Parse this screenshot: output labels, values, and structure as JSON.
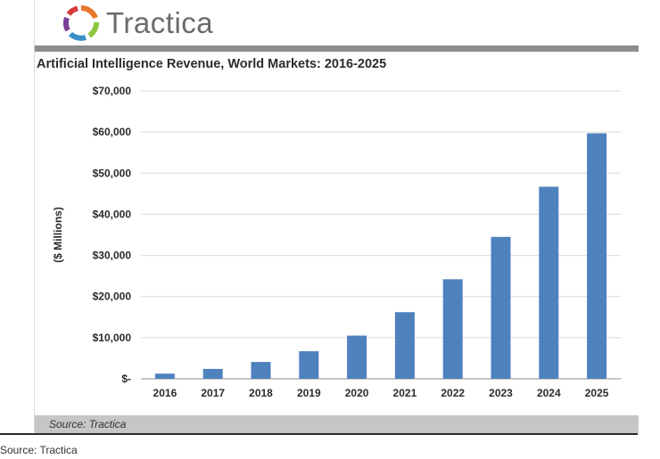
{
  "brand": {
    "name": "Tractica"
  },
  "chart_data": {
    "type": "bar",
    "title": "Artificial Intelligence Revenue, World Markets: 2016-2025",
    "xlabel": "",
    "ylabel": "($ Millions)",
    "categories": [
      "2016",
      "2017",
      "2018",
      "2019",
      "2020",
      "2021",
      "2022",
      "2023",
      "2024",
      "2025"
    ],
    "values": [
      1250,
      2400,
      4100,
      6700,
      10500,
      16200,
      24200,
      34500,
      46700,
      59700
    ],
    "ylim": [
      0,
      70000
    ],
    "yticks": [
      0,
      10000,
      20000,
      30000,
      40000,
      50000,
      60000,
      70000
    ],
    "ytick_labels": [
      "$-",
      "$10,000",
      "$20,000",
      "$30,000",
      "$40,000",
      "$50,000",
      "$60,000",
      "$70,000"
    ],
    "grid": true,
    "bar_color": "#4f81bd",
    "grid_color": "#d9d9d9"
  },
  "source_bar": {
    "text": "Source: Tractica"
  },
  "caption": {
    "text": "Source: Tractica"
  }
}
